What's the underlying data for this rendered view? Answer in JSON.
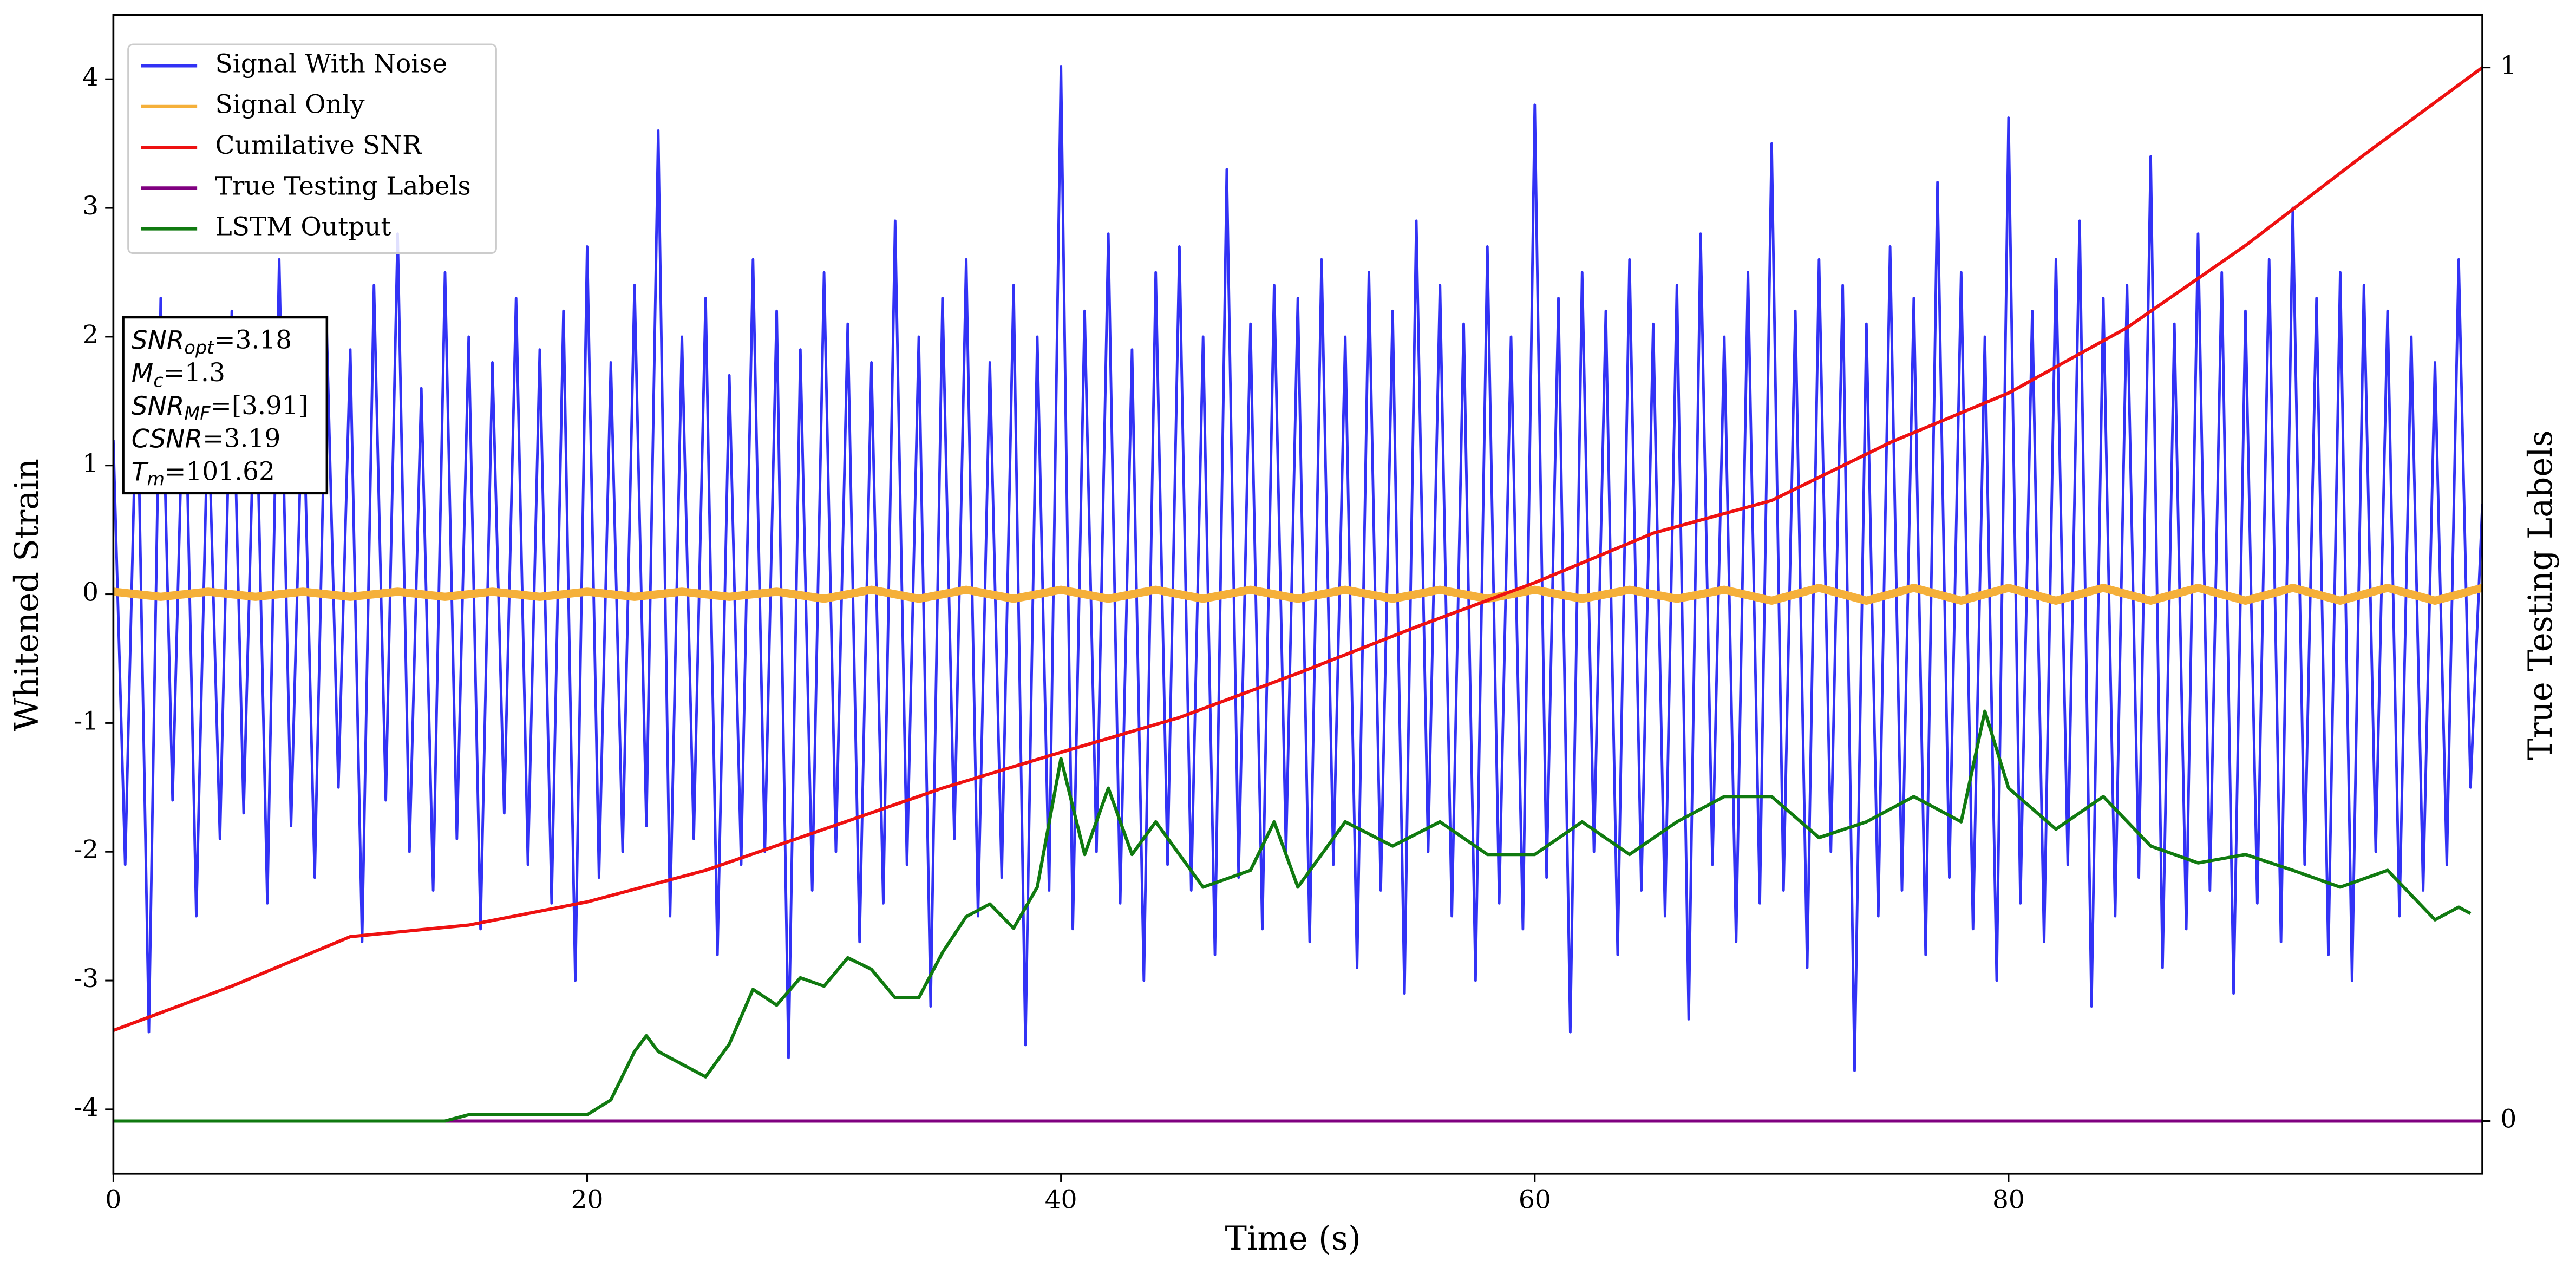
{
  "chart_data": {
    "type": "line",
    "xlabel": "Time (s)",
    "ylabel": "Whitened Strain",
    "y2label": "True Testing Labels",
    "xlim": [
      0,
      100
    ],
    "xticks": [
      0,
      20,
      40,
      60,
      80
    ],
    "ylim": [
      -4.5,
      4.5
    ],
    "yticks": [
      -4,
      -3,
      -2,
      -1,
      0,
      1,
      2,
      3,
      4
    ],
    "y2lim": [
      -0.05,
      1.05
    ],
    "y2ticks": [
      0,
      1
    ],
    "legend": "upper left",
    "annotations": [
      {
        "text": "SNR",
        "sub": "opt",
        "rest": "=3.18"
      },
      {
        "text": "M",
        "sub": "c",
        "rest": "=1.3"
      },
      {
        "text": "SNR",
        "sub": "MF",
        "rest": "=[3.91]"
      },
      {
        "text": "CSNR",
        "rest": "=3.19"
      },
      {
        "text": "T",
        "sub": "m",
        "rest": "=101.62"
      }
    ],
    "series": [
      {
        "name": "Signal With Noise",
        "color": "#3232f5",
        "axis": "y",
        "x": [
          0,
          0.5,
          1,
          1.5,
          2,
          2.5,
          3,
          3.5,
          4,
          4.5,
          5,
          5.5,
          6,
          6.5,
          7,
          7.5,
          8,
          8.5,
          9,
          9.5,
          10,
          10.5,
          11,
          11.5,
          12,
          12.5,
          13,
          13.5,
          14,
          14.5,
          15,
          15.5,
          16,
          16.5,
          17,
          17.5,
          18,
          18.5,
          19,
          19.5,
          20,
          20.5,
          21,
          21.5,
          22,
          22.5,
          23,
          23.5,
          24,
          24.5,
          25,
          25.5,
          26,
          26.5,
          27,
          27.5,
          28,
          28.5,
          29,
          29.5,
          30,
          30.5,
          31,
          31.5,
          32,
          32.5,
          33,
          33.5,
          34,
          34.5,
          35,
          35.5,
          36,
          36.5,
          37,
          37.5,
          38,
          38.5,
          39,
          39.5,
          40,
          40.5,
          41,
          41.5,
          42,
          42.5,
          43,
          43.5,
          44,
          44.5,
          45,
          45.5,
          46,
          46.5,
          47,
          47.5,
          48,
          48.5,
          49,
          49.5,
          50,
          50.5,
          51,
          51.5,
          52,
          52.5,
          53,
          53.5,
          54,
          54.5,
          55,
          55.5,
          56,
          56.5,
          57,
          57.5,
          58,
          58.5,
          59,
          59.5,
          60,
          60.5,
          61,
          61.5,
          62,
          62.5,
          63,
          63.5,
          64,
          64.5,
          65,
          65.5,
          66,
          66.5,
          67,
          67.5,
          68,
          68.5,
          69,
          69.5,
          70,
          70.5,
          71,
          71.5,
          72,
          72.5,
          73,
          73.5,
          74,
          74.5,
          75,
          75.5,
          76,
          76.5,
          77,
          77.5,
          78,
          78.5,
          79,
          79.5,
          80,
          80.5,
          81,
          81.5,
          82,
          82.5,
          83,
          83.5,
          84,
          84.5,
          85,
          85.5,
          86,
          86.5,
          87,
          87.5,
          88,
          88.5,
          89,
          89.5,
          90,
          90.5,
          91,
          91.5,
          92,
          92.5,
          93,
          93.5,
          94,
          94.5,
          95,
          95.5,
          96,
          96.5,
          97,
          97.5,
          98,
          98.5,
          99,
          99.5,
          100
        ],
        "values": [
          1.2,
          -2.1,
          1.8,
          -3.4,
          2.3,
          -1.6,
          2.0,
          -2.5,
          1.5,
          -1.9,
          2.2,
          -1.7,
          1.9,
          -2.4,
          2.6,
          -1.8,
          1.7,
          -2.2,
          2.1,
          -1.5,
          1.9,
          -2.7,
          2.4,
          -1.6,
          2.8,
          -2.0,
          1.6,
          -2.3,
          2.5,
          -1.9,
          2.0,
          -2.6,
          1.8,
          -1.7,
          2.3,
          -2.1,
          1.9,
          -2.4,
          2.2,
          -3.0,
          2.7,
          -2.2,
          1.8,
          -2.0,
          2.4,
          -1.8,
          3.6,
          -2.5,
          2.0,
          -1.9,
          2.3,
          -2.8,
          1.7,
          -2.1,
          2.6,
          -2.0,
          2.2,
          -3.6,
          1.9,
          -2.3,
          2.5,
          -2.0,
          2.1,
          -2.7,
          1.8,
          -2.4,
          2.9,
          -2.1,
          2.0,
          -3.2,
          2.3,
          -1.9,
          2.6,
          -2.5,
          1.8,
          -2.2,
          2.4,
          -3.5,
          2.0,
          -2.3,
          4.1,
          -2.6,
          2.2,
          -2.0,
          2.8,
          -2.4,
          1.9,
          -3.0,
          2.5,
          -2.1,
          2.7,
          -2.3,
          2.0,
          -2.8,
          3.3,
          -2.2,
          2.1,
          -2.6,
          2.4,
          -2.0,
          2.3,
          -2.7,
          2.6,
          -2.1,
          2.0,
          -2.9,
          2.5,
          -2.3,
          2.2,
          -3.1,
          2.9,
          -2.0,
          2.4,
          -2.5,
          2.1,
          -3.0,
          2.7,
          -2.4,
          2.0,
          -2.6,
          3.8,
          -2.2,
          2.3,
          -3.4,
          2.5,
          -2.0,
          2.2,
          -2.8,
          2.6,
          -2.3,
          2.1,
          -2.5,
          2.4,
          -3.3,
          2.8,
          -2.1,
          2.0,
          -2.7,
          2.5,
          -2.4,
          3.5,
          -2.3,
          2.2,
          -2.9,
          2.6,
          -2.0,
          2.4,
          -3.7,
          2.1,
          -2.5,
          2.7,
          -2.3,
          2.3,
          -2.8,
          3.2,
          -2.2,
          2.5,
          -2.6,
          2.0,
          -3.0,
          3.7,
          -2.4,
          2.2,
          -2.7,
          2.6,
          -2.1,
          2.9,
          -3.2,
          2.3,
          -2.5,
          2.4,
          -2.2,
          3.4,
          -2.9,
          2.1,
          -2.6,
          2.8,
          -2.3,
          2.5,
          -3.1,
          2.2,
          -2.4,
          2.6,
          -2.7,
          3.0,
          -2.1,
          2.3,
          -2.8,
          2.5,
          -3.0,
          2.4,
          -2.0,
          2.2,
          -2.5,
          2.0,
          -2.3,
          1.8,
          -2.1,
          2.6,
          -1.5,
          0.7
        ]
      },
      {
        "name": "Signal Only",
        "color": "#f5b03a",
        "axis": "y",
        "x": [
          0,
          2,
          4,
          6,
          8,
          10,
          12,
          14,
          16,
          18,
          20,
          22,
          24,
          26,
          28,
          30,
          32,
          34,
          36,
          38,
          40,
          42,
          44,
          46,
          48,
          50,
          52,
          54,
          56,
          58,
          60,
          62,
          64,
          66,
          68,
          70,
          72,
          74,
          76,
          78,
          80,
          82,
          84,
          86,
          88,
          90,
          92,
          94,
          96,
          98,
          100
        ],
        "values": [
          0.02,
          -0.02,
          0.02,
          -0.02,
          0.02,
          -0.02,
          0.02,
          -0.02,
          0.02,
          -0.02,
          0.02,
          -0.02,
          0.02,
          -0.02,
          0.02,
          -0.035,
          0.035,
          -0.035,
          0.035,
          -0.035,
          0.035,
          -0.035,
          0.035,
          -0.035,
          0.035,
          -0.035,
          0.035,
          -0.035,
          0.035,
          -0.035,
          0.035,
          -0.035,
          0.035,
          -0.035,
          0.035,
          -0.05,
          0.05,
          -0.05,
          0.05,
          -0.05,
          0.05,
          -0.05,
          0.05,
          -0.05,
          0.05,
          -0.05,
          0.05,
          -0.05,
          0.05,
          -0.05,
          0.05
        ]
      },
      {
        "name": "Cumilative SNR",
        "color": "#ee1111",
        "axis": "y2",
        "x": [
          0,
          5,
          10,
          15,
          20,
          25,
          30,
          35,
          40,
          45,
          50,
          55,
          60,
          65,
          70,
          75,
          80,
          85,
          90,
          95,
          100
        ],
        "values": [
          0.086,
          0.128,
          0.175,
          0.186,
          0.208,
          0.238,
          0.277,
          0.316,
          0.35,
          0.383,
          0.425,
          0.469,
          0.511,
          0.558,
          0.589,
          0.644,
          0.691,
          0.753,
          0.831,
          0.917,
          1.0
        ]
      },
      {
        "name": "True Testing Labels",
        "color": "#800080",
        "axis": "y2",
        "x": [
          0,
          100
        ],
        "values": [
          0,
          0
        ]
      },
      {
        "name": "LSTM Output",
        "color": "#107a10",
        "axis": "y2",
        "x": [
          0,
          5,
          10,
          14,
          15,
          20,
          21,
          22,
          22.5,
          23,
          25,
          26,
          27,
          28,
          29,
          30,
          31,
          32,
          33,
          34,
          35,
          36,
          37,
          38,
          39,
          40,
          41,
          42,
          43,
          44,
          45,
          46,
          48,
          49,
          50,
          52,
          54,
          56,
          58,
          60,
          62,
          64,
          66,
          68,
          70,
          72,
          74,
          76,
          78,
          79,
          80,
          82,
          84,
          86,
          88,
          90,
          92,
          94,
          96,
          98,
          99,
          99.5
        ],
        "values": [
          0,
          0,
          0,
          0,
          0.006,
          0.006,
          0.02,
          0.066,
          0.081,
          0.066,
          0.042,
          0.073,
          0.125,
          0.11,
          0.136,
          0.128,
          0.155,
          0.144,
          0.117,
          0.117,
          0.16,
          0.194,
          0.206,
          0.183,
          0.222,
          0.344,
          0.253,
          0.316,
          0.253,
          0.284,
          0.253,
          0.222,
          0.238,
          0.284,
          0.222,
          0.284,
          0.261,
          0.284,
          0.253,
          0.253,
          0.284,
          0.253,
          0.284,
          0.308,
          0.308,
          0.269,
          0.284,
          0.308,
          0.284,
          0.389,
          0.316,
          0.277,
          0.308,
          0.261,
          0.245,
          0.253,
          0.238,
          0.222,
          0.238,
          0.191,
          0.203,
          0.197
        ]
      }
    ]
  }
}
